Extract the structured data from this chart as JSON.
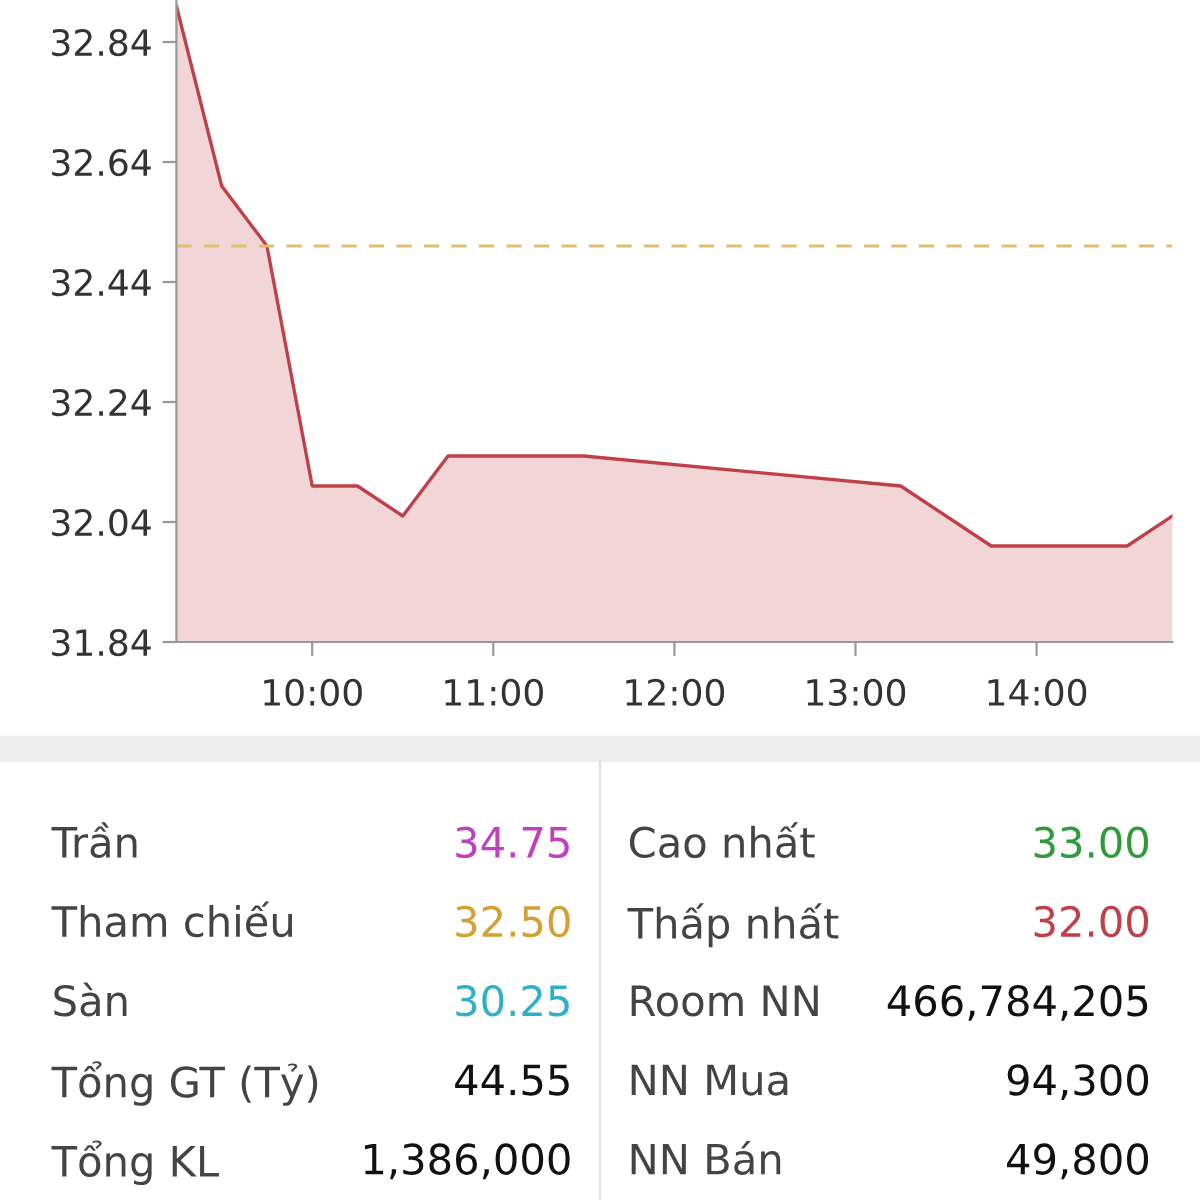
{
  "chart_data": [
    {
      "type": "area",
      "x": [
        9.25,
        9.5,
        9.75,
        10.0,
        10.25,
        10.5,
        10.75,
        11.5,
        13.25,
        13.75,
        14.5,
        14.75
      ],
      "series": [
        {
          "color": "#c0404a",
          "values": [
            32.9,
            32.6,
            32.5,
            32.1,
            32.1,
            32.05,
            32.15,
            32.15,
            32.1,
            32.0,
            32.0,
            32.05
          ]
        }
      ],
      "xlim": [
        9.25,
        14.75
      ],
      "xticks": [
        {
          "value": 10,
          "label": "10:00"
        },
        {
          "value": 11,
          "label": "11:00"
        },
        {
          "value": 12,
          "label": "12:00"
        },
        {
          "value": 13,
          "label": "13:00"
        },
        {
          "value": 14,
          "label": "14:00"
        }
      ],
      "ylim": [
        31.84,
        32.91
      ],
      "yticks": [
        {
          "value": 31.84,
          "label": "31.84"
        },
        {
          "value": 32.04,
          "label": "32.04"
        },
        {
          "value": 32.24,
          "label": "32.24"
        },
        {
          "value": 32.44,
          "label": "32.44"
        },
        {
          "value": 32.64,
          "label": "32.64"
        },
        {
          "value": 32.84,
          "label": "32.84"
        }
      ],
      "ref_lines": [
        {
          "axis": "y",
          "value": 32.5,
          "label": null,
          "color": "#e0c070",
          "line_style": "dashed"
        }
      ],
      "grid": false,
      "legend": false
    },
    {
      "type": "other",
      "categories": [
        "Trần",
        "Tham chiếu",
        "Sàn",
        "Tổng GT (Tỷ)",
        "Tổng KL",
        "Cao nhất",
        "Thấp nhất",
        "Room NN",
        "NN Mua",
        "NN Bán"
      ],
      "value_labels": [
        "34.75",
        "32.50",
        "30.25",
        "44.55",
        "1,386,000",
        "33.00",
        "32.00",
        "466,784,205",
        "94,300",
        "49,800"
      ],
      "colors": [
        "#c040c0",
        "#d4a030",
        "#30b0c8",
        "#111111",
        "#111111",
        "#2e9a3a",
        "#c0404a",
        "#111111",
        "#111111",
        "#111111"
      ]
    }
  ]
}
